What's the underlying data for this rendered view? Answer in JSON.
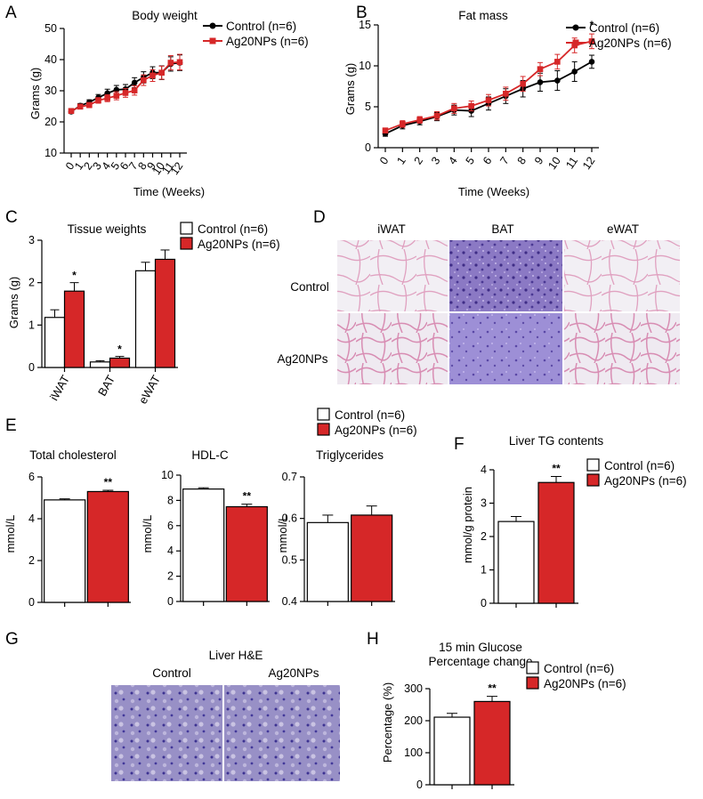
{
  "colors": {
    "control": "#000000",
    "ag20": "#d62728",
    "tissue_pink": "#e2a6c4",
    "tissue_purple": "#6a55a8"
  },
  "panels": {
    "A": {
      "letter": "A"
    },
    "B": {
      "letter": "B"
    },
    "C": {
      "letter": "C"
    },
    "D": {
      "letter": "D"
    },
    "E": {
      "letter": "E"
    },
    "F": {
      "letter": "F"
    },
    "G": {
      "letter": "G"
    },
    "H": {
      "letter": "H"
    }
  },
  "legend": {
    "control": "Control (n=6)",
    "ag20": "Ag20NPs (n=6)"
  },
  "chart_data": [
    {
      "id": "A",
      "type": "line",
      "title": "Body weight",
      "xlabel": "Time (Weeks)",
      "ylabel": "Grams (g)",
      "ylim": [
        10,
        50
      ],
      "yticks": [
        10,
        20,
        30,
        40,
        50
      ],
      "x": [
        0,
        1,
        2,
        3,
        4,
        5,
        6,
        7,
        8,
        9,
        10,
        11,
        12
      ],
      "series": [
        {
          "name": "Control (n=6)",
          "marker": "circle",
          "values": [
            23.3,
            25.2,
            26.3,
            27.8,
            29.2,
            30.3,
            30.5,
            32.6,
            34.3,
            35.8,
            35.8,
            38.6,
            39.0
          ],
          "err": [
            0.6,
            0.7,
            0.8,
            1.0,
            1.3,
            1.4,
            1.5,
            1.6,
            1.8,
            1.9,
            2.2,
            2.3,
            2.5
          ]
        },
        {
          "name": "Ag20NPs (n=6)",
          "marker": "square",
          "values": [
            23.5,
            24.9,
            25.4,
            26.9,
            27.6,
            28.4,
            29.3,
            30.1,
            33.4,
            34.9,
            35.8,
            39.0,
            39.2
          ],
          "err": [
            0.5,
            0.6,
            0.8,
            0.9,
            1.1,
            1.3,
            1.4,
            1.5,
            1.7,
            1.9,
            2.1,
            2.3,
            2.5
          ]
        }
      ],
      "annotations": []
    },
    {
      "id": "B",
      "type": "line",
      "title": "Fat mass",
      "xlabel": "Time (Weeks)",
      "ylabel": "Grams (g)",
      "ylim": [
        0,
        15
      ],
      "yticks": [
        0,
        5,
        10,
        15
      ],
      "x": [
        0,
        1,
        2,
        3,
        4,
        5,
        6,
        7,
        8,
        9,
        10,
        11,
        12
      ],
      "series": [
        {
          "name": "Control (n=6)",
          "marker": "circle",
          "values": [
            1.7,
            2.7,
            3.2,
            3.8,
            4.6,
            4.5,
            5.4,
            6.3,
            7.2,
            8.0,
            8.2,
            9.3,
            10.5
          ],
          "err": [
            0.3,
            0.4,
            0.4,
            0.5,
            0.6,
            0.7,
            0.8,
            0.9,
            1.0,
            1.1,
            1.2,
            1.2,
            0.8
          ]
        },
        {
          "name": "Ag20NPs (n=6)",
          "marker": "square",
          "values": [
            2.1,
            2.9,
            3.4,
            3.9,
            4.8,
            5.1,
            5.8,
            6.6,
            7.8,
            9.6,
            10.5,
            12.5,
            13.0
          ],
          "err": [
            0.3,
            0.4,
            0.4,
            0.5,
            0.6,
            0.6,
            0.7,
            0.8,
            0.9,
            0.8,
            0.9,
            0.9,
            0.9
          ]
        }
      ],
      "annotations": [
        {
          "x": 11,
          "text": "*"
        },
        {
          "x": 12,
          "text": "*"
        }
      ]
    },
    {
      "id": "C",
      "type": "bar",
      "title": "Tissue weights",
      "ylabel": "Grams (g)",
      "ylim": [
        0,
        3
      ],
      "yticks": [
        0,
        1,
        2,
        3
      ],
      "categories": [
        "iWAT",
        "BAT",
        "eWAT"
      ],
      "series": [
        {
          "name": "Control (n=6)",
          "values": [
            1.18,
            0.13,
            2.28
          ],
          "err": [
            0.18,
            0.03,
            0.2
          ]
        },
        {
          "name": "Ag20NPs (n=6)",
          "values": [
            1.8,
            0.22,
            2.55
          ],
          "err": [
            0.2,
            0.04,
            0.22
          ]
        }
      ],
      "annotations": [
        {
          "category": "iWAT",
          "text": "*"
        },
        {
          "category": "BAT",
          "text": "*"
        }
      ]
    },
    {
      "id": "E1",
      "type": "bar",
      "title": "Total cholesterol",
      "ylabel": "mmol/L",
      "ylim": [
        0,
        6
      ],
      "yticks": [
        0,
        2,
        4,
        6
      ],
      "series": [
        {
          "name": "Control (n=6)",
          "values": [
            4.9
          ],
          "err": [
            0.05
          ]
        },
        {
          "name": "Ag20NPs (n=6)",
          "values": [
            5.3
          ],
          "err": [
            0.06
          ]
        }
      ],
      "annotations": [
        {
          "text": "**"
        }
      ]
    },
    {
      "id": "E2",
      "type": "bar",
      "title": "HDL-C",
      "ylabel": "mmol/L",
      "ylim": [
        0,
        10
      ],
      "yticks": [
        0,
        2,
        4,
        6,
        8,
        10
      ],
      "series": [
        {
          "name": "Control (n=6)",
          "values": [
            8.9
          ],
          "err": [
            0.1
          ]
        },
        {
          "name": "Ag20NPs (n=6)",
          "values": [
            7.5
          ],
          "err": [
            0.2
          ]
        }
      ],
      "annotations": [
        {
          "text": "**"
        }
      ]
    },
    {
      "id": "E3",
      "type": "bar",
      "title": "Triglycerides",
      "ylabel": "mmol/L",
      "ylim": [
        0.4,
        0.7
      ],
      "yticks": [
        0.4,
        0.5,
        0.6,
        0.7
      ],
      "series": [
        {
          "name": "Control (n=6)",
          "values": [
            0.59
          ],
          "err": [
            0.018
          ]
        },
        {
          "name": "Ag20NPs (n=6)",
          "values": [
            0.608
          ],
          "err": [
            0.022
          ]
        }
      ],
      "annotations": []
    },
    {
      "id": "F",
      "type": "bar",
      "title": "Liver TG contents",
      "ylabel": "mmol/g protein",
      "ylim": [
        0,
        4
      ],
      "yticks": [
        0,
        1,
        2,
        3,
        4
      ],
      "series": [
        {
          "name": "Control (n=6)",
          "values": [
            2.45
          ],
          "err": [
            0.15
          ]
        },
        {
          "name": "Ag20NPs (n=6)",
          "values": [
            3.62
          ],
          "err": [
            0.18
          ]
        }
      ],
      "annotations": [
        {
          "text": "**"
        }
      ]
    },
    {
      "id": "H",
      "type": "bar",
      "title": "15 min Glucose",
      "title2": "Percentage change",
      "ylabel": "Percentage (%)",
      "ylim": [
        0,
        300
      ],
      "yticks": [
        0,
        100,
        200,
        300
      ],
      "series": [
        {
          "name": "Control (n=6)",
          "values": [
            211
          ],
          "err": [
            12
          ]
        },
        {
          "name": "Ag20NPs (n=6)",
          "values": [
            260
          ],
          "err": [
            16
          ]
        }
      ],
      "annotations": [
        {
          "text": "**"
        }
      ]
    }
  ],
  "histology_D": {
    "columns": [
      "iWAT",
      "BAT",
      "eWAT"
    ],
    "rows": [
      "Control",
      "Ag20NPs"
    ]
  },
  "histology_G": {
    "title": "Liver H&E",
    "columns": [
      "Control",
      "Ag20NPs"
    ]
  }
}
